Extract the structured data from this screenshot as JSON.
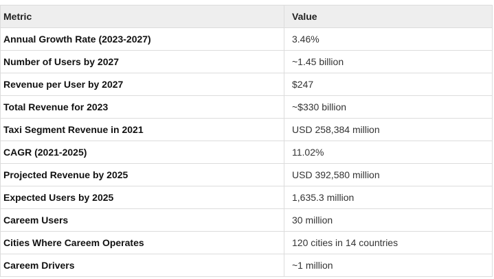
{
  "table": {
    "headers": {
      "metric": "Metric",
      "value": "Value"
    },
    "rows": [
      {
        "metric": "Annual Growth Rate (2023-2027)",
        "value": "3.46%"
      },
      {
        "metric": "Number of Users by 2027",
        "value": "~1.45 billion"
      },
      {
        "metric": "Revenue per User by 2027",
        "value": "$247"
      },
      {
        "metric": "Total Revenue for 2023",
        "value": "~$330 billion"
      },
      {
        "metric": "Taxi Segment Revenue in 2021",
        "value": "USD 258,384 million"
      },
      {
        "metric": "CAGR (2021-2025)",
        "value": "11.02%"
      },
      {
        "metric": "Projected Revenue by 2025",
        "value": "USD 392,580 million"
      },
      {
        "metric": "Expected Users by 2025",
        "value": "1,635.3 million"
      },
      {
        "metric": "Careem Users",
        "value": "30 million"
      },
      {
        "metric": "Cities Where Careem Operates",
        "value": "120 cities in 14 countries"
      },
      {
        "metric": "Careem Drivers",
        "value": "~1 million"
      }
    ]
  },
  "colors": {
    "header_background": "#eeeeee",
    "border": "#dcdcdc",
    "text": "#222222"
  }
}
